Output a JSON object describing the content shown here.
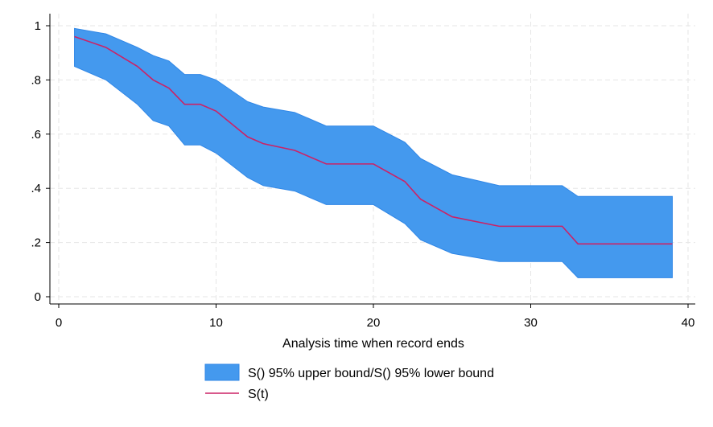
{
  "chart_data": {
    "type": "area",
    "title": "",
    "xlabel": "Analysis time when record ends",
    "ylabel": "",
    "xlim": [
      0,
      40
    ],
    "ylim": [
      0,
      1
    ],
    "x_ticks": [
      0,
      10,
      20,
      30,
      40
    ],
    "x_tick_labels": [
      "0",
      "10",
      "20",
      "30",
      "40"
    ],
    "y_ticks": [
      0,
      0.2,
      0.4,
      0.6,
      0.8,
      1
    ],
    "y_tick_labels": [
      "0",
      ".2",
      ".4",
      ".6",
      ".8",
      "1"
    ],
    "grid": true,
    "legend_position": "bottom",
    "colors": {
      "band": "#4499ee",
      "band_edge": "#2f86e6",
      "line": "#cc2266",
      "grid": "#e6e6e6"
    },
    "series": [
      {
        "name": "S() 95% upper bound/S() 95% lower bound",
        "type": "band",
        "x": [
          1,
          3,
          5,
          6,
          7,
          8,
          9,
          10,
          12,
          13,
          15,
          17,
          18,
          20,
          22,
          23,
          25,
          28,
          30,
          32,
          33,
          39
        ],
        "upper": [
          0.99,
          0.97,
          0.92,
          0.89,
          0.87,
          0.82,
          0.82,
          0.8,
          0.72,
          0.7,
          0.68,
          0.63,
          0.63,
          0.63,
          0.57,
          0.51,
          0.45,
          0.41,
          0.41,
          0.41,
          0.37,
          0.37
        ],
        "lower": [
          0.85,
          0.8,
          0.71,
          0.65,
          0.63,
          0.56,
          0.56,
          0.53,
          0.44,
          0.41,
          0.39,
          0.34,
          0.34,
          0.34,
          0.27,
          0.21,
          0.16,
          0.13,
          0.13,
          0.13,
          0.07,
          0.07
        ]
      },
      {
        "name": "S(t)",
        "type": "line",
        "x": [
          1,
          3,
          5,
          6,
          7,
          8,
          9,
          10,
          12,
          13,
          15,
          17,
          18,
          20,
          22,
          23,
          25,
          28,
          30,
          32,
          33,
          39
        ],
        "y": [
          0.96,
          0.92,
          0.85,
          0.8,
          0.77,
          0.71,
          0.71,
          0.685,
          0.59,
          0.565,
          0.54,
          0.49,
          0.49,
          0.49,
          0.425,
          0.36,
          0.295,
          0.26,
          0.26,
          0.26,
          0.195,
          0.195
        ]
      }
    ]
  }
}
